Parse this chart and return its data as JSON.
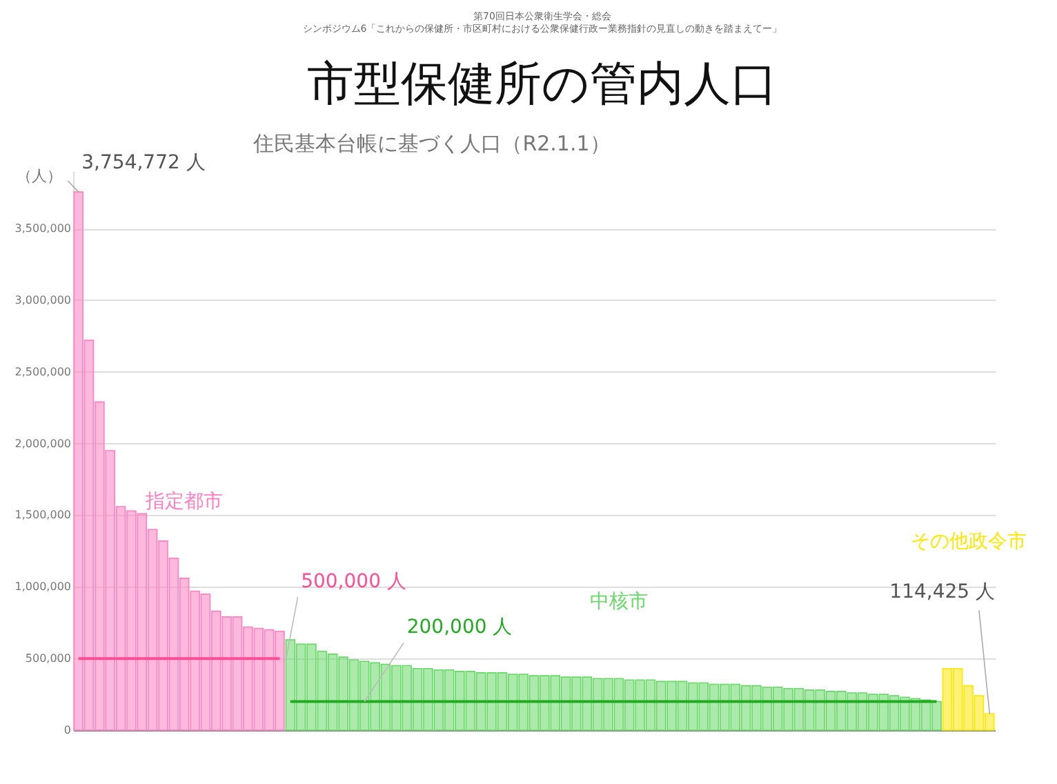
{
  "chart_data": {
    "type": "bar",
    "title": "市型保健所の管内人口",
    "subtitle": "住民基本台帳に基づく人口（R2.1.1）",
    "ylabel": "（人）",
    "annotations": [
      "第70回日本公衆衛生学会・総会",
      "シンポジウム6「これからの保健所・市区町村における公衆保健行政ー業務指針の見直しの動きを踏まえてー」"
    ],
    "categories": [
      null,
      null,
      null,
      null,
      null,
      null,
      null,
      null,
      null,
      null,
      null,
      null,
      null,
      null,
      null,
      null,
      null,
      null,
      null,
      null,
      null,
      null,
      null,
      null,
      null,
      null,
      null,
      null,
      null,
      null,
      null,
      null,
      null,
      null,
      null,
      null,
      null,
      null,
      null,
      null,
      null,
      null,
      null,
      null,
      null,
      null,
      null,
      null,
      null,
      null,
      null,
      null,
      null,
      null,
      null,
      null,
      null,
      null,
      null,
      null,
      null,
      null,
      null,
      null,
      null,
      null,
      null,
      null,
      null,
      null,
      null,
      null,
      null,
      null,
      null,
      null,
      null,
      null,
      null,
      null,
      null,
      null,
      null,
      null,
      null,
      null,
      null
    ],
    "ylim": [
      0,
      3900000
    ],
    "yticks": [
      {
        "value": 0,
        "label": "0"
      },
      {
        "value": 500000,
        "label": "500,000"
      },
      {
        "value": 1000000,
        "label": "1,000,000"
      },
      {
        "value": 1500000,
        "label": "1,500,000"
      },
      {
        "value": 2000000,
        "label": "2,000,000"
      },
      {
        "value": 2500000,
        "label": "2,500,000"
      },
      {
        "value": 3000000,
        "label": "3,000,000"
      },
      {
        "value": 3500000,
        "label": "3,500,000"
      }
    ],
    "grid": "y",
    "tick_labels": "y",
    "series": [
      {
        "name": "指定都市",
        "color": "#ff7fc0",
        "values": [
          3754772,
          2720000,
          2290000,
          1950000,
          1560000,
          1530000,
          1510000,
          1400000,
          1320000,
          1200000,
          1060000,
          970000,
          950000,
          830000,
          790000,
          790000,
          720000,
          710000,
          700000,
          690000,
          null,
          null,
          null,
          null,
          null,
          null,
          null,
          null,
          null,
          null,
          null,
          null,
          null,
          null,
          null,
          null,
          null,
          null,
          null,
          null,
          null,
          null,
          null,
          null,
          null,
          null,
          null,
          null,
          null,
          null,
          null,
          null,
          null,
          null,
          null,
          null,
          null,
          null,
          null,
          null,
          null,
          null,
          null,
          null,
          null,
          null,
          null,
          null,
          null,
          null,
          null,
          null,
          null,
          null,
          null,
          null,
          null,
          null,
          null,
          null,
          null,
          null,
          null,
          null,
          null,
          null,
          null
        ],
        "value_labels": [
          "3,754,772 人",
          null,
          null,
          null,
          null,
          null,
          null,
          null,
          null,
          null,
          null,
          null,
          null,
          null,
          null,
          null,
          null,
          null,
          null,
          null,
          null,
          null,
          null,
          null,
          null,
          null,
          null,
          null,
          null,
          null,
          null,
          null,
          null,
          null,
          null,
          null,
          null,
          null,
          null,
          null,
          null,
          null,
          null,
          null,
          null,
          null,
          null,
          null,
          null,
          null,
          null,
          null,
          null,
          null,
          null,
          null,
          null,
          null,
          null,
          null,
          null,
          null,
          null,
          null,
          null,
          null,
          null,
          null,
          null,
          null,
          null,
          null,
          null,
          null,
          null,
          null,
          null,
          null,
          null,
          null,
          null,
          null,
          null,
          null,
          null,
          null,
          null
        ]
      },
      {
        "name": "中核市",
        "color": "#66d966",
        "values": [
          null,
          null,
          null,
          null,
          null,
          null,
          null,
          null,
          null,
          null,
          null,
          null,
          null,
          null,
          null,
          null,
          null,
          null,
          null,
          null,
          630000,
          600000,
          600000,
          550000,
          530000,
          510000,
          490000,
          480000,
          470000,
          460000,
          450000,
          450000,
          430000,
          430000,
          420000,
          420000,
          410000,
          410000,
          400000,
          400000,
          400000,
          390000,
          390000,
          380000,
          380000,
          380000,
          370000,
          370000,
          370000,
          360000,
          360000,
          360000,
          350000,
          350000,
          350000,
          340000,
          340000,
          340000,
          330000,
          330000,
          320000,
          320000,
          320000,
          310000,
          310000,
          300000,
          300000,
          290000,
          290000,
          280000,
          280000,
          270000,
          270000,
          260000,
          260000,
          250000,
          250000,
          240000,
          230000,
          220000,
          210000,
          200000,
          null,
          null,
          null,
          null,
          null
        ]
      },
      {
        "name": "その他政令市",
        "color": "#ffe600",
        "values": [
          null,
          null,
          null,
          null,
          null,
          null,
          null,
          null,
          null,
          null,
          null,
          null,
          null,
          null,
          null,
          null,
          null,
          null,
          null,
          null,
          null,
          null,
          null,
          null,
          null,
          null,
          null,
          null,
          null,
          null,
          null,
          null,
          null,
          null,
          null,
          null,
          null,
          null,
          null,
          null,
          null,
          null,
          null,
          null,
          null,
          null,
          null,
          null,
          null,
          null,
          null,
          null,
          null,
          null,
          null,
          null,
          null,
          null,
          null,
          null,
          null,
          null,
          null,
          null,
          null,
          null,
          null,
          null,
          null,
          null,
          null,
          null,
          null,
          null,
          null,
          null,
          null,
          null,
          null,
          null,
          null,
          null,
          430000,
          430000,
          310000,
          240000,
          114425
        ],
        "value_labels": [
          null,
          null,
          null,
          null,
          null,
          null,
          null,
          null,
          null,
          null,
          null,
          null,
          null,
          null,
          null,
          null,
          null,
          null,
          null,
          null,
          null,
          null,
          null,
          null,
          null,
          null,
          null,
          null,
          null,
          null,
          null,
          null,
          null,
          null,
          null,
          null,
          null,
          null,
          null,
          null,
          null,
          null,
          null,
          null,
          null,
          null,
          null,
          null,
          null,
          null,
          null,
          null,
          null,
          null,
          null,
          null,
          null,
          null,
          null,
          null,
          null,
          null,
          null,
          null,
          null,
          null,
          null,
          null,
          null,
          null,
          null,
          null,
          null,
          null,
          null,
          null,
          null,
          null,
          null,
          null,
          null,
          null,
          null,
          null,
          null,
          null,
          "114,425 人"
        ]
      },
      {
        "name": "500,000 人",
        "type": "line",
        "color": "#ff4d94",
        "values": [
          500000,
          500000,
          500000,
          500000,
          500000,
          500000,
          500000,
          500000,
          500000,
          500000,
          500000,
          500000,
          500000,
          500000,
          500000,
          500000,
          500000,
          500000,
          500000,
          500000,
          null,
          null,
          null,
          null,
          null,
          null,
          null,
          null,
          null,
          null,
          null,
          null,
          null,
          null,
          null,
          null,
          null,
          null,
          null,
          null,
          null,
          null,
          null,
          null,
          null,
          null,
          null,
          null,
          null,
          null,
          null,
          null,
          null,
          null,
          null,
          null,
          null,
          null,
          null,
          null,
          null,
          null,
          null,
          null,
          null,
          null,
          null,
          null,
          null,
          null,
          null,
          null,
          null,
          null,
          null,
          null,
          null,
          null,
          null,
          null,
          null,
          null,
          null,
          null,
          null,
          null,
          null
        ]
      },
      {
        "name": "200,000 人",
        "type": "line",
        "color": "#22aa22",
        "values": [
          null,
          null,
          null,
          null,
          null,
          null,
          null,
          null,
          null,
          null,
          null,
          null,
          null,
          null,
          null,
          null,
          null,
          null,
          null,
          null,
          200000,
          200000,
          200000,
          200000,
          200000,
          200000,
          200000,
          200000,
          200000,
          200000,
          200000,
          200000,
          200000,
          200000,
          200000,
          200000,
          200000,
          200000,
          200000,
          200000,
          200000,
          200000,
          200000,
          200000,
          200000,
          200000,
          200000,
          200000,
          200000,
          200000,
          200000,
          200000,
          200000,
          200000,
          200000,
          200000,
          200000,
          200000,
          200000,
          200000,
          200000,
          200000,
          200000,
          200000,
          200000,
          200000,
          200000,
          200000,
          200000,
          200000,
          200000,
          200000,
          200000,
          200000,
          200000,
          200000,
          200000,
          200000,
          200000,
          200000,
          200000,
          200000,
          null,
          null,
          null,
          null,
          null
        ]
      }
    ]
  }
}
